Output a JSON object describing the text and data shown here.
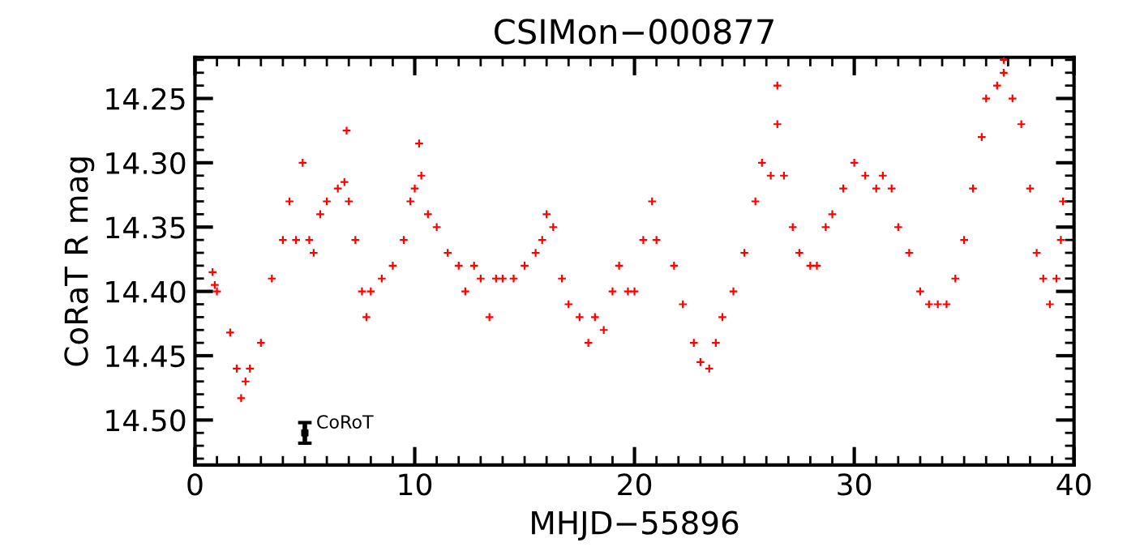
{
  "chart_data": {
    "type": "scatter",
    "title": "CSIMon−000877",
    "xlabel": "MHJD−55896",
    "ylabel": "CoRaT R mag",
    "xlim": [
      0,
      40
    ],
    "xticks": [
      0,
      10,
      20,
      30,
      40
    ],
    "ylim": [
      14.535,
      14.218
    ],
    "yticks": [
      {
        "value": 14.25,
        "label": "14.25"
      },
      {
        "value": 14.3,
        "label": "14.30"
      },
      {
        "value": 14.35,
        "label": "14.35"
      },
      {
        "value": 14.4,
        "label": "14.40"
      },
      {
        "value": 14.45,
        "label": "14.45"
      },
      {
        "value": 14.5,
        "label": "14.50"
      }
    ],
    "grid": false,
    "legend": false,
    "series": [
      {
        "marker": "cross",
        "color": "#ff0000",
        "x": [
          0.8,
          0.9,
          1.0,
          1.6,
          1.9,
          2.1,
          2.3,
          2.5,
          3.0,
          3.5,
          4.0,
          4.3,
          4.6,
          4.9,
          5.2,
          5.4,
          5.7,
          6.0,
          6.5,
          6.8,
          6.9,
          7.0,
          7.3,
          7.6,
          7.8,
          8.0,
          8.5,
          9.0,
          9.5,
          9.8,
          10.0,
          10.2,
          10.3,
          10.6,
          11.0,
          11.5,
          12.0,
          12.3,
          12.7,
          13.0,
          13.4,
          13.7,
          14.0,
          14.5,
          15.0,
          15.5,
          15.8,
          16.0,
          16.3,
          16.7,
          17.0,
          17.5,
          17.9,
          18.2,
          18.6,
          19.0,
          19.3,
          19.7,
          20.0,
          20.4,
          20.8,
          21.0,
          21.8,
          22.2,
          22.7,
          23.0,
          23.4,
          23.7,
          24.0,
          24.5,
          25.0,
          25.5,
          25.8,
          26.2,
          26.5,
          26.5,
          26.8,
          27.2,
          27.5,
          28.0,
          28.3,
          28.7,
          29.0,
          29.5,
          30.0,
          30.5,
          31.0,
          31.3,
          31.7,
          32.0,
          32.5,
          33.0,
          33.4,
          33.8,
          34.2,
          34.6,
          35.0,
          35.4,
          35.8,
          36.0,
          36.5,
          36.8,
          36.8,
          37.2,
          37.6,
          38.0,
          38.3,
          38.6,
          38.9,
          39.2,
          39.4,
          39.5
        ],
        "values": [
          14.385,
          14.395,
          14.4,
          14.432,
          14.46,
          14.483,
          14.47,
          14.46,
          14.44,
          14.39,
          14.36,
          14.33,
          14.36,
          14.3,
          14.36,
          14.37,
          14.34,
          14.33,
          14.32,
          14.315,
          14.275,
          14.33,
          14.36,
          14.4,
          14.42,
          14.4,
          14.39,
          14.38,
          14.36,
          14.33,
          14.32,
          14.285,
          14.31,
          14.34,
          14.35,
          14.37,
          14.38,
          14.4,
          14.38,
          14.39,
          14.42,
          14.39,
          14.39,
          14.39,
          14.38,
          14.37,
          14.36,
          14.34,
          14.35,
          14.39,
          14.41,
          14.42,
          14.44,
          14.42,
          14.43,
          14.4,
          14.38,
          14.4,
          14.4,
          14.36,
          14.33,
          14.36,
          14.38,
          14.41,
          14.44,
          14.455,
          14.46,
          14.44,
          14.42,
          14.4,
          14.37,
          14.33,
          14.3,
          14.31,
          14.27,
          14.24,
          14.31,
          14.35,
          14.37,
          14.38,
          14.38,
          14.35,
          14.34,
          14.32,
          14.3,
          14.31,
          14.32,
          14.31,
          14.32,
          14.35,
          14.37,
          14.4,
          14.41,
          14.41,
          14.41,
          14.39,
          14.36,
          14.32,
          14.28,
          14.25,
          14.24,
          14.23,
          14.22,
          14.25,
          14.27,
          14.32,
          14.37,
          14.39,
          14.41,
          14.39,
          14.36,
          14.33
        ]
      },
      {
        "marker": "square",
        "color": "#000000",
        "x": [
          5
        ],
        "values": [
          14.51
        ],
        "errors": [
          0.008
        ]
      }
    ],
    "annotations": [
      {
        "text": "CoRoT",
        "x": 5,
        "y": 14.51
      }
    ]
  }
}
